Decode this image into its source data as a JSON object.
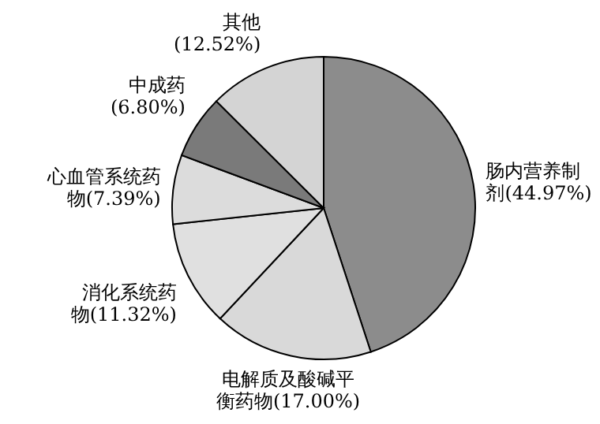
{
  "chart_data": {
    "type": "pie",
    "categories": [
      "肠内营养制剂",
      "电解质及酸碱平衡药物",
      "消化系统药物",
      "心血管系统药物",
      "中成药",
      "其他"
    ],
    "values": [
      44.97,
      17.0,
      11.32,
      7.39,
      6.8,
      12.52
    ],
    "value_labels": [
      "(44.97%)",
      "(17.00%)",
      "(11.32%)",
      "(7.39%)",
      "(6.80%)",
      "(12.52%)"
    ],
    "colors": [
      "#8c8c8c",
      "#d9d9d9",
      "#e0e0e0",
      "#dcdcdc",
      "#7a7a7a",
      "#d4d4d4"
    ]
  }
}
